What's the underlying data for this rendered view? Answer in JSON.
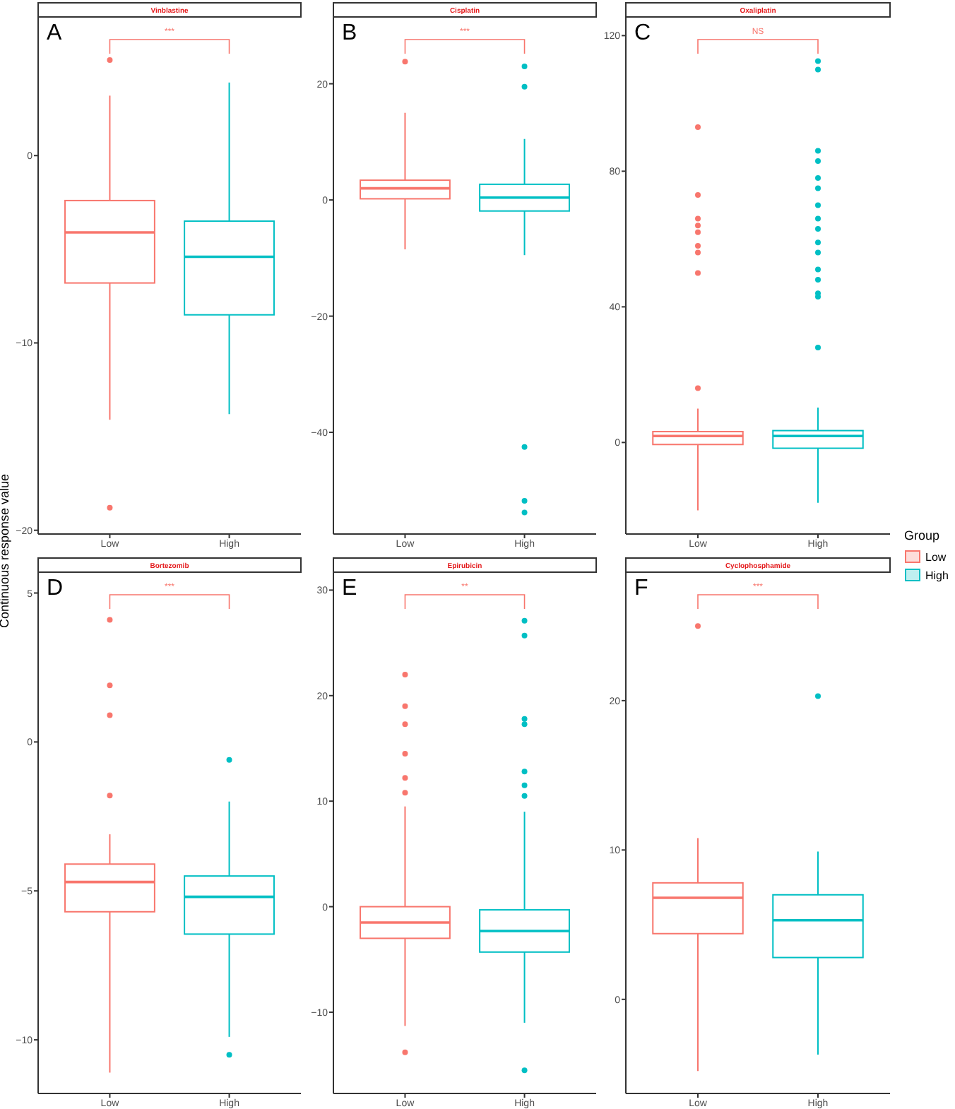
{
  "chart_data": [
    {
      "type": "box",
      "title": "Vinblastine",
      "ylabel": "Continuous response value",
      "categories": [
        "Low",
        "High"
      ],
      "series": [
        {
          "color": "#f8766d",
          "boxes": [
            {
              "low": -14.1,
              "q1": -6.8,
              "median": -4.1,
              "q3": -2.4,
              "high": 3.2,
              "outliers": [
                5.1,
                -18.8
              ]
            },
            null
          ]
        },
        {
          "color": "#00bfc4",
          "boxes": [
            null,
            {
              "low": -13.8,
              "q1": -8.5,
              "median": -5.4,
              "q3": -3.5,
              "high": 3.9
            }
          ]
        }
      ],
      "ylim": [
        -20.2,
        7.4
      ],
      "yticks": [
        -20,
        -10,
        0
      ],
      "annotations": [
        "A",
        "***"
      ]
    },
    {
      "type": "box",
      "title": "Cisplatin",
      "categories": [
        "Low",
        "High"
      ],
      "series": [
        {
          "color": "#f8766d",
          "boxes": [
            {
              "low": -8.5,
              "q1": 0.2,
              "median": 2.0,
              "q3": 3.4,
              "high": 15,
              "outliers": [
                23.8
              ]
            },
            null
          ]
        },
        {
          "color": "#00bfc4",
          "boxes": [
            null,
            {
              "low": -9.5,
              "q1": -1.9,
              "median": 0.4,
              "q3": 2.7,
              "high": 10.5,
              "outliers": [
                23,
                19.5,
                -42.5,
                -51.8,
                -53.8
              ]
            }
          ]
        }
      ],
      "ylim": [
        -57.5,
        31.5
      ],
      "yticks": [
        -40,
        -20,
        0,
        20
      ],
      "annotations": [
        "B",
        "***"
      ]
    },
    {
      "type": "box",
      "title": "Oxaliplatin",
      "categories": [
        "Low",
        "High"
      ],
      "series": [
        {
          "name": "Low",
          "color": "#f8766d",
          "boxes": [
            {
              "low": -20,
              "q1": -0.6,
              "median": 1.9,
              "q3": 3.2,
              "high": 10,
              "outliers": [
                93,
                73,
                66,
                64,
                62,
                58,
                56,
                50,
                16
              ]
            },
            null
          ]
        },
        {
          "name": "High",
          "color": "#00bfc4",
          "boxes": [
            null,
            {
              "low": -17.8,
              "q1": -1.7,
              "median": 1.9,
              "q3": 3.5,
              "high": 10.3,
              "outliers": [
                112.5,
                110,
                86,
                83,
                78,
                75,
                70,
                66,
                63,
                59,
                56,
                51,
                48,
                44,
                43,
                28
              ]
            }
          ]
        }
      ],
      "ylim": [
        -27,
        125.5
      ],
      "yticks": [
        0,
        40,
        80,
        120
      ],
      "annotations": [
        "C",
        "NS"
      ],
      "legend": "right",
      "legend_title": "Group"
    },
    {
      "type": "box",
      "title": "Bortezomib",
      "categories": [
        "Low",
        "High"
      ],
      "series": [
        {
          "color": "#f8766d",
          "boxes": [
            {
              "low": -11.1,
              "q1": -5.7,
              "median": -4.7,
              "q3": -4.1,
              "high": -3.1,
              "outliers": [
                4.1,
                1.9,
                0.9,
                -1.8
              ]
            },
            null
          ]
        },
        {
          "color": "#00bfc4",
          "boxes": [
            null,
            {
              "low": -9.9,
              "q1": -6.45,
              "median": -5.2,
              "q3": -4.5,
              "high": -2.0,
              "outliers": [
                -0.6,
                -10.5
              ]
            }
          ]
        }
      ],
      "ylim": [
        -11.8,
        5.7
      ],
      "yticks": [
        -10,
        -5,
        0,
        5
      ],
      "annotations": [
        "D",
        "***"
      ]
    },
    {
      "type": "box",
      "title": "Epirubicin",
      "categories": [
        "Low",
        "High"
      ],
      "series": [
        {
          "color": "#f8766d",
          "boxes": [
            {
              "low": -11.3,
              "q1": -3.0,
              "median": -1.5,
              "q3": 0.0,
              "high": 9.5,
              "outliers": [
                22,
                19,
                17.3,
                14.5,
                12.2,
                10.8,
                -13.8
              ]
            },
            null
          ]
        },
        {
          "color": "#00bfc4",
          "boxes": [
            null,
            {
              "low": -11,
              "q1": -4.3,
              "median": -2.3,
              "q3": -0.3,
              "high": 9,
              "outliers": [
                27.1,
                25.7,
                17.8,
                17.3,
                12.8,
                11.5,
                10.5,
                -15.5
              ]
            }
          ]
        }
      ],
      "ylim": [
        -17.7,
        31.7
      ],
      "yticks": [
        -10,
        0,
        10,
        20,
        30
      ],
      "annotations": [
        "E",
        "**"
      ]
    },
    {
      "type": "box",
      "title": "Cyclophosphamide",
      "categories": [
        "Low",
        "High"
      ],
      "series": [
        {
          "color": "#f8766d",
          "boxes": [
            {
              "low": -4.8,
              "q1": 4.4,
              "median": 6.8,
              "q3": 7.8,
              "high": 10.8,
              "outliers": [
                25
              ]
            },
            null
          ]
        },
        {
          "color": "#00bfc4",
          "boxes": [
            null,
            {
              "low": -3.7,
              "q1": 2.8,
              "median": 5.3,
              "q3": 7.0,
              "high": 9.9,
              "outliers": [
                20.3
              ]
            }
          ]
        }
      ],
      "ylim": [
        -6.3,
        28.6
      ],
      "yticks": [
        0,
        10,
        20
      ],
      "annotations": [
        "F",
        "***"
      ]
    }
  ]
}
